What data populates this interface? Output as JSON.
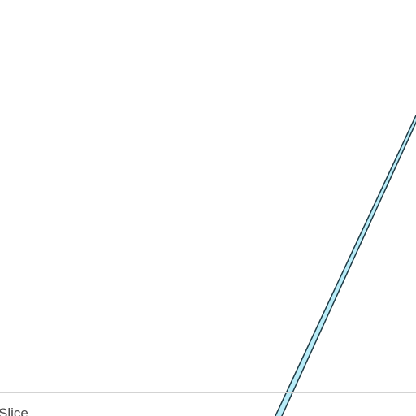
{
  "panel": {
    "label": "Slice"
  },
  "colors": {
    "background": "#ffffff",
    "line_fill": "#b8ecf8",
    "line_outline": "#1f3a44",
    "divider": "#d3d3d3",
    "label_text": "#4a4a4a"
  }
}
